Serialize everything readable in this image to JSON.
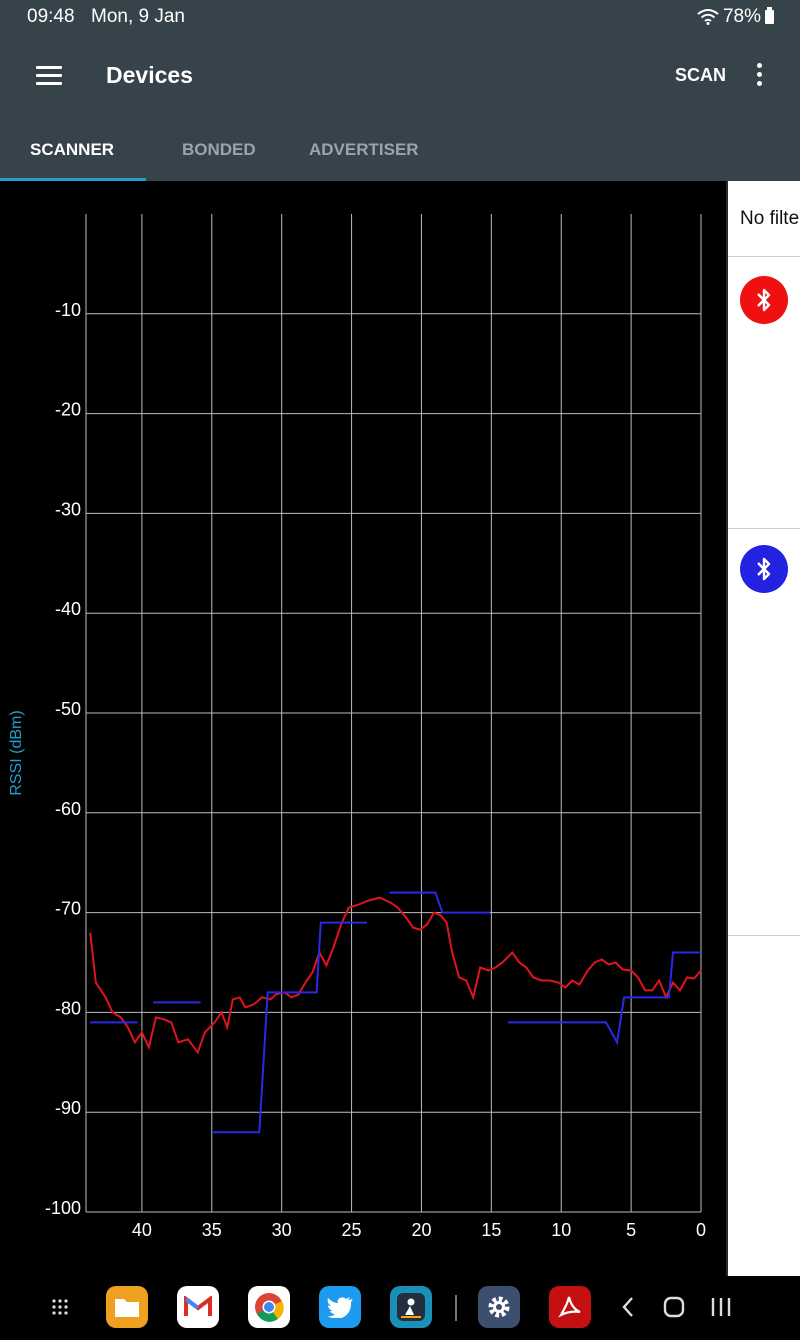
{
  "status_bar": {
    "time": "09:48",
    "date": "Mon, 9 Jan",
    "battery": "78%"
  },
  "app_bar": {
    "title": "Devices",
    "scan_label": "SCAN"
  },
  "tabs": [
    {
      "label": "SCANNER",
      "active": true
    },
    {
      "label": "BONDED",
      "active": false
    },
    {
      "label": "ADVERTISER",
      "active": false
    }
  ],
  "chart_data": {
    "type": "line",
    "ylabel": "RSSI (dBm)",
    "xlabel": "",
    "xlim": [
      44,
      0
    ],
    "ylim": [
      -100,
      0
    ],
    "x_ticks": [
      40,
      35,
      30,
      25,
      20,
      15,
      10,
      5,
      0
    ],
    "y_ticks": [
      -10,
      -20,
      -30,
      -40,
      -50,
      -60,
      -70,
      -80,
      -90,
      -100
    ],
    "grid": true,
    "series": [
      {
        "color": "#e0141e",
        "step": false,
        "points": [
          [
            43.7,
            -72
          ],
          [
            43.3,
            -77
          ],
          [
            42.6,
            -78.5
          ],
          [
            42.1,
            -80
          ],
          [
            41.5,
            -80.5
          ],
          [
            41.0,
            -81.5
          ],
          [
            40.5,
            -83
          ],
          [
            40.0,
            -82
          ],
          [
            39.5,
            -83.5
          ],
          [
            39.0,
            -80.5
          ],
          [
            38.4,
            -80.7
          ],
          [
            37.9,
            -81
          ],
          [
            37.4,
            -83
          ],
          [
            36.7,
            -82.7
          ],
          [
            36.0,
            -84
          ],
          [
            35.5,
            -82
          ],
          [
            34.8,
            -81
          ],
          [
            34.3,
            -80
          ],
          [
            33.9,
            -81.5
          ],
          [
            33.5,
            -78.7
          ],
          [
            33.0,
            -78.5
          ],
          [
            32.6,
            -79.5
          ],
          [
            32.0,
            -79.2
          ],
          [
            31.4,
            -78.5
          ],
          [
            30.8,
            -78.7
          ],
          [
            30.4,
            -78.2
          ],
          [
            29.8,
            -78
          ],
          [
            29.3,
            -78.5
          ],
          [
            28.8,
            -78.2
          ],
          [
            28.3,
            -77
          ],
          [
            27.8,
            -76
          ],
          [
            27.3,
            -74
          ],
          [
            26.8,
            -75.3
          ],
          [
            26.3,
            -73.5
          ],
          [
            25.7,
            -71
          ],
          [
            25.2,
            -69.5
          ],
          [
            24.5,
            -69.2
          ],
          [
            23.8,
            -68.8
          ],
          [
            23.0,
            -68.5
          ],
          [
            22.2,
            -69
          ],
          [
            21.7,
            -69.5
          ],
          [
            21.1,
            -70.5
          ],
          [
            20.6,
            -71.5
          ],
          [
            20.1,
            -71.7
          ],
          [
            19.6,
            -71.2
          ],
          [
            19.1,
            -70
          ],
          [
            18.6,
            -70.3
          ],
          [
            18.2,
            -71
          ],
          [
            17.8,
            -74
          ],
          [
            17.3,
            -76.5
          ],
          [
            16.8,
            -76.8
          ],
          [
            16.3,
            -78.5
          ],
          [
            15.8,
            -75.5
          ],
          [
            15.2,
            -75.8
          ],
          [
            14.7,
            -75.5
          ],
          [
            14.2,
            -75
          ],
          [
            13.5,
            -74
          ],
          [
            13.0,
            -75
          ],
          [
            12.5,
            -75.5
          ],
          [
            12.0,
            -76.5
          ],
          [
            11.4,
            -76.8
          ],
          [
            10.8,
            -76.8
          ],
          [
            10.2,
            -77
          ],
          [
            9.7,
            -77.5
          ],
          [
            9.2,
            -76.8
          ],
          [
            8.7,
            -77.2
          ],
          [
            8.1,
            -75.8
          ],
          [
            7.6,
            -75
          ],
          [
            7.1,
            -74.7
          ],
          [
            6.6,
            -75.2
          ],
          [
            6.1,
            -75
          ],
          [
            5.6,
            -75.7
          ],
          [
            5.0,
            -75.8
          ],
          [
            4.5,
            -76.5
          ],
          [
            4.0,
            -77.8
          ],
          [
            3.5,
            -77.8
          ],
          [
            3.0,
            -76.8
          ],
          [
            2.5,
            -78.5
          ],
          [
            2.0,
            -77
          ],
          [
            1.5,
            -77.8
          ],
          [
            1.0,
            -76.5
          ],
          [
            0.5,
            -76.6
          ],
          [
            0.0,
            -75.8
          ]
        ]
      },
      {
        "color": "#2a2ae6",
        "step": true,
        "segments": [
          [
            [
              43.7,
              -81
            ],
            [
              40.3,
              -81
            ]
          ],
          [
            [
              39.2,
              -79
            ],
            [
              35.8,
              -79
            ]
          ],
          [
            [
              34.9,
              -92
            ],
            [
              31.6,
              -92
            ],
            [
              31.0,
              -78
            ],
            [
              27.5,
              -78
            ],
            [
              27.2,
              -71
            ],
            [
              23.9,
              -71
            ]
          ],
          [
            [
              22.3,
              -68
            ],
            [
              19.0,
              -68
            ],
            [
              18.5,
              -70
            ],
            [
              15.1,
              -70
            ]
          ],
          [
            [
              13.8,
              -81
            ],
            [
              6.8,
              -81
            ],
            [
              6.0,
              -83
            ],
            [
              5.5,
              -78.5
            ],
            [
              2.3,
              -78.5
            ],
            [
              2.0,
              -74
            ],
            [
              0.0,
              -74
            ]
          ]
        ]
      }
    ]
  },
  "side_panel": {
    "filter_text": "No filter",
    "devices": [
      {
        "icon": "bluetooth-icon",
        "color": "#f01010"
      },
      {
        "icon": "bluetooth-icon",
        "color": "#2222e0"
      }
    ]
  },
  "nav_bar": {
    "apps": [
      {
        "name": "apps-grid-icon"
      },
      {
        "name": "files-app-icon",
        "color": "#f0a020"
      },
      {
        "name": "gmail-app-icon",
        "color": "#ffffff"
      },
      {
        "name": "chrome-app-icon",
        "color": "#ffffff"
      },
      {
        "name": "twitter-app-icon",
        "color": "#1d9bf0"
      },
      {
        "name": "kindle-app-icon",
        "color": "#1a8fb8"
      },
      {
        "name": "settings-app-icon",
        "color": "#3d4f6e"
      },
      {
        "name": "acrobat-app-icon",
        "color": "#c41010"
      }
    ]
  }
}
